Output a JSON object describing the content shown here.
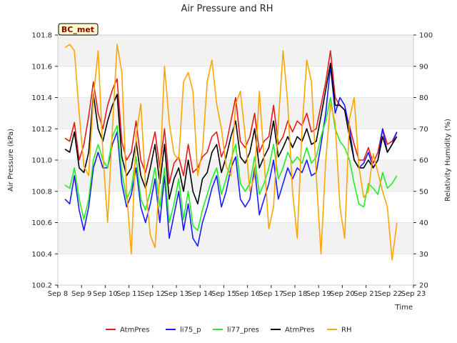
{
  "chart_data": {
    "type": "line",
    "title": "Air Pressure and RH",
    "badge": "BC_met",
    "xlabel": "Time",
    "ylabel_left": "Air Pressure (kPa)",
    "ylabel_right": "Relativity Humidity (%)",
    "x_ticks": [
      "Sep 8",
      "Sep 9",
      "Sep 10",
      "Sep 11",
      "Sep 12",
      "Sep 13",
      "Sep 14",
      "Sep 15",
      "Sep 16",
      "Sep 17",
      "Sep 18",
      "Sep 19",
      "Sep 20",
      "Sep 21",
      "Sep 22",
      "Sep 23"
    ],
    "xlim": [
      8,
      23
    ],
    "ylim_left": [
      100.2,
      101.8
    ],
    "yticks_left": [
      "100.2",
      "100.4",
      "100.6",
      "100.8",
      "101.0",
      "101.2",
      "101.4",
      "101.6",
      "101.8"
    ],
    "ylim_right": [
      20,
      100
    ],
    "yticks_right": [
      "20",
      "30",
      "40",
      "50",
      "60",
      "70",
      "80",
      "90",
      "100"
    ],
    "grid": true,
    "legend_position": "bottom-center",
    "series": [
      {
        "name": "AtmPres",
        "axis": "left",
        "color": "#e41a1c",
        "x": [
          8.3,
          8.5,
          8.7,
          8.9,
          9.1,
          9.3,
          9.5,
          9.7,
          9.9,
          10.1,
          10.3,
          10.5,
          10.7,
          10.9,
          11.1,
          11.3,
          11.5,
          11.7,
          11.9,
          12.1,
          12.3,
          12.5,
          12.7,
          12.9,
          13.1,
          13.3,
          13.5,
          13.7,
          13.9,
          14.1,
          14.3,
          14.5,
          14.7,
          14.9,
          15.1,
          15.3,
          15.5,
          15.7,
          15.9,
          16.1,
          16.3,
          16.5,
          16.7,
          16.9,
          17.1,
          17.3,
          17.5,
          17.7,
          17.9,
          18.1,
          18.3,
          18.5,
          18.7,
          18.9,
          19.1,
          19.3,
          19.5,
          19.7,
          19.9,
          20.1,
          20.3,
          20.5,
          20.7,
          20.9,
          21.1,
          21.3,
          21.5,
          21.7,
          21.9,
          22.1,
          22.3
        ],
        "values": [
          101.14,
          101.12,
          101.24,
          101.0,
          101.1,
          101.28,
          101.5,
          101.3,
          101.2,
          101.35,
          101.45,
          101.52,
          101.12,
          101.0,
          101.05,
          101.25,
          101.0,
          100.92,
          101.05,
          101.18,
          100.95,
          101.2,
          100.85,
          100.98,
          101.02,
          100.9,
          101.1,
          100.92,
          100.95,
          101.02,
          101.05,
          101.15,
          101.18,
          101.02,
          101.1,
          101.25,
          101.4,
          101.12,
          101.08,
          101.15,
          101.3,
          101.05,
          101.12,
          101.15,
          101.35,
          101.1,
          101.15,
          101.25,
          101.18,
          101.25,
          101.22,
          101.3,
          101.18,
          101.2,
          101.35,
          101.5,
          101.7,
          101.4,
          101.35,
          101.32,
          101.22,
          101.1,
          101.0,
          101.0,
          101.08,
          100.98,
          101.05,
          101.2,
          101.1,
          101.12,
          101.18
        ]
      },
      {
        "name": "li75_p",
        "axis": "left",
        "color": "#1a1aff",
        "x": [
          8.3,
          8.5,
          8.7,
          8.9,
          9.1,
          9.3,
          9.5,
          9.7,
          9.9,
          10.1,
          10.3,
          10.5,
          10.7,
          10.9,
          11.1,
          11.3,
          11.5,
          11.7,
          11.9,
          12.1,
          12.3,
          12.5,
          12.7,
          12.9,
          13.1,
          13.3,
          13.5,
          13.7,
          13.9,
          14.1,
          14.3,
          14.5,
          14.7,
          14.9,
          15.1,
          15.3,
          15.5,
          15.7,
          15.9,
          16.1,
          16.3,
          16.5,
          16.7,
          16.9,
          17.1,
          17.3,
          17.5,
          17.7,
          17.9,
          18.1,
          18.3,
          18.5,
          18.7,
          18.9,
          19.1,
          19.3,
          19.5,
          19.7,
          19.9,
          20.1,
          20.3,
          20.5,
          20.7,
          20.9,
          21.1,
          21.3,
          21.5,
          21.7,
          21.9,
          22.1,
          22.3
        ],
        "values": [
          100.75,
          100.72,
          100.9,
          100.68,
          100.55,
          100.7,
          100.95,
          101.05,
          100.95,
          100.95,
          101.1,
          101.18,
          100.85,
          100.7,
          100.78,
          100.95,
          100.7,
          100.6,
          100.72,
          100.88,
          100.6,
          100.9,
          100.5,
          100.65,
          100.8,
          100.55,
          100.72,
          100.5,
          100.45,
          100.6,
          100.7,
          100.82,
          100.9,
          100.7,
          100.8,
          100.95,
          101.02,
          100.75,
          100.7,
          100.75,
          100.95,
          100.65,
          100.75,
          100.85,
          101.0,
          100.75,
          100.85,
          100.95,
          100.88,
          100.95,
          100.92,
          101.0,
          100.9,
          100.92,
          101.1,
          101.3,
          101.6,
          101.3,
          101.4,
          101.35,
          101.2,
          101.0,
          100.95,
          100.98,
          101.05,
          100.95,
          101.0,
          101.2,
          101.05,
          101.1,
          101.18
        ]
      },
      {
        "name": "li77_pres",
        "axis": "left",
        "color": "#22ee22",
        "x": [
          8.3,
          8.5,
          8.7,
          8.9,
          9.1,
          9.3,
          9.5,
          9.7,
          9.9,
          10.1,
          10.3,
          10.5,
          10.7,
          10.9,
          11.1,
          11.3,
          11.5,
          11.7,
          11.9,
          12.1,
          12.3,
          12.5,
          12.7,
          12.9,
          13.1,
          13.3,
          13.5,
          13.7,
          13.9,
          14.1,
          14.3,
          14.5,
          14.7,
          14.9,
          15.1,
          15.3,
          15.5,
          15.7,
          15.9,
          16.1,
          16.3,
          16.5,
          16.7,
          16.9,
          17.1,
          17.3,
          17.5,
          17.7,
          17.9,
          18.1,
          18.3,
          18.5,
          18.7,
          18.9,
          19.1,
          19.3,
          19.5,
          19.7,
          19.9,
          20.1,
          20.3,
          20.5,
          20.7,
          20.9,
          21.1,
          21.3,
          21.5,
          21.7,
          21.9,
          22.1,
          22.3
        ],
        "values": [
          100.84,
          100.82,
          100.95,
          100.75,
          100.62,
          100.75,
          101.0,
          101.1,
          101.0,
          100.95,
          101.15,
          101.22,
          100.92,
          100.75,
          100.82,
          101.02,
          100.75,
          100.68,
          100.8,
          100.95,
          100.7,
          100.95,
          100.6,
          100.72,
          100.88,
          100.62,
          100.8,
          100.58,
          100.55,
          100.68,
          100.78,
          100.88,
          100.95,
          100.78,
          100.88,
          101.0,
          101.1,
          100.85,
          100.8,
          100.85,
          101.02,
          100.78,
          100.85,
          100.95,
          101.1,
          100.88,
          100.95,
          101.05,
          100.98,
          101.02,
          100.98,
          101.08,
          100.98,
          101.02,
          101.15,
          101.25,
          101.4,
          101.2,
          101.12,
          101.08,
          101.0,
          100.85,
          100.72,
          100.7,
          100.85,
          100.82,
          100.78,
          100.92,
          100.82,
          100.85,
          100.9
        ]
      },
      {
        "name": "AtmPres",
        "axis": "left",
        "color": "#000000",
        "x": [
          8.3,
          8.5,
          8.7,
          8.9,
          9.1,
          9.3,
          9.5,
          9.7,
          9.9,
          10.1,
          10.3,
          10.5,
          10.7,
          10.9,
          11.1,
          11.3,
          11.5,
          11.7,
          11.9,
          12.1,
          12.3,
          12.5,
          12.7,
          12.9,
          13.1,
          13.3,
          13.5,
          13.7,
          13.9,
          14.1,
          14.3,
          14.5,
          14.7,
          14.9,
          15.1,
          15.3,
          15.5,
          15.7,
          15.9,
          16.1,
          16.3,
          16.5,
          16.7,
          16.9,
          17.1,
          17.3,
          17.5,
          17.7,
          17.9,
          18.1,
          18.3,
          18.5,
          18.7,
          18.9,
          19.1,
          19.3,
          19.5,
          19.7,
          19.9,
          20.1,
          20.3,
          20.5,
          20.7,
          20.9,
          21.1,
          21.3,
          21.5,
          21.7,
          21.9,
          22.1,
          22.3
        ],
        "values": [
          101.07,
          101.05,
          101.18,
          100.95,
          100.92,
          101.05,
          101.42,
          101.2,
          101.12,
          101.25,
          101.35,
          101.42,
          101.02,
          100.9,
          100.95,
          101.12,
          100.9,
          100.82,
          100.95,
          101.1,
          100.85,
          101.1,
          100.75,
          100.88,
          100.95,
          100.8,
          101.0,
          100.8,
          100.72,
          100.88,
          100.92,
          101.05,
          101.1,
          100.92,
          101.02,
          101.15,
          101.25,
          101.02,
          100.98,
          101.05,
          101.2,
          100.95,
          101.02,
          101.08,
          101.25,
          101.02,
          101.08,
          101.15,
          101.08,
          101.15,
          101.12,
          101.2,
          101.1,
          101.12,
          101.28,
          101.45,
          101.62,
          101.35,
          101.35,
          101.32,
          101.15,
          101.0,
          100.95,
          100.95,
          101.0,
          100.95,
          101.0,
          101.15,
          101.05,
          101.1,
          101.15
        ]
      },
      {
        "name": "RH",
        "axis": "right",
        "color": "#ffa500",
        "x": [
          8.3,
          8.5,
          8.7,
          8.9,
          9.1,
          9.3,
          9.5,
          9.7,
          9.9,
          10.1,
          10.3,
          10.5,
          10.7,
          10.9,
          11.1,
          11.3,
          11.5,
          11.7,
          11.9,
          12.1,
          12.3,
          12.5,
          12.7,
          12.9,
          13.1,
          13.3,
          13.5,
          13.7,
          13.9,
          14.1,
          14.3,
          14.5,
          14.7,
          14.9,
          15.1,
          15.3,
          15.5,
          15.7,
          15.9,
          16.1,
          16.3,
          16.5,
          16.7,
          16.9,
          17.1,
          17.3,
          17.5,
          17.7,
          17.9,
          18.1,
          18.3,
          18.5,
          18.7,
          18.9,
          19.1,
          19.3,
          19.5,
          19.7,
          19.9,
          20.1,
          20.3,
          20.5,
          20.7,
          20.9,
          21.1,
          21.3,
          21.5,
          21.7,
          21.9,
          22.1,
          22.3
        ],
        "values": [
          96,
          97,
          95,
          75,
          58,
          55,
          80,
          95,
          62,
          40,
          70,
          97,
          88,
          50,
          30,
          68,
          78,
          52,
          36,
          32,
          55,
          90,
          72,
          62,
          60,
          85,
          88,
          82,
          55,
          63,
          85,
          92,
          78,
          70,
          58,
          55,
          78,
          82,
          68,
          50,
          55,
          82,
          60,
          38,
          45,
          72,
          95,
          78,
          50,
          35,
          70,
          92,
          85,
          55,
          30,
          60,
          78,
          72,
          45,
          35,
          73,
          80,
          58,
          48,
          50,
          62,
          56,
          50,
          45,
          28,
          40
        ]
      }
    ]
  }
}
